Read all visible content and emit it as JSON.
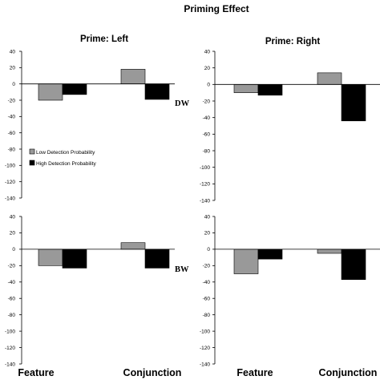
{
  "figure": {
    "title": "Priming Effect",
    "legend": [
      {
        "label": "Low Detection Probability",
        "color": "#999999"
      },
      {
        "label": "High Detection Probability",
        "color": "#000000"
      }
    ],
    "row_labels": [
      "DW",
      "BW"
    ]
  },
  "chart_data": [
    {
      "type": "bar",
      "title": "Prime: Left",
      "row_label": "DW",
      "categories": [
        "Feature",
        "Conjunction"
      ],
      "series": [
        {
          "name": "Low Detection Probability",
          "values": [
            -20,
            18
          ]
        },
        {
          "name": "High Detection Probability",
          "values": [
            -13,
            -19
          ]
        }
      ],
      "ylim": [
        -140,
        40
      ],
      "yticks": [
        40,
        20,
        0,
        -20,
        -40,
        -60,
        -80,
        -100,
        -120,
        -140
      ]
    },
    {
      "type": "bar",
      "title": "Prime: Right",
      "row_label": "DW",
      "categories": [
        "Feature",
        "Conjunction"
      ],
      "series": [
        {
          "name": "Low Detection Probability",
          "values": [
            -10,
            14
          ]
        },
        {
          "name": "High Detection Probability",
          "values": [
            -13,
            -44
          ]
        }
      ],
      "ylim": [
        -140,
        40
      ],
      "yticks": [
        40,
        20,
        0,
        -20,
        -40,
        -60,
        -80,
        -100,
        -120,
        -140
      ]
    },
    {
      "type": "bar",
      "title": "",
      "row_label": "BW",
      "categories": [
        "Feature",
        "Conjunction"
      ],
      "series": [
        {
          "name": "Low Detection Probability",
          "values": [
            -20,
            8
          ]
        },
        {
          "name": "High Detection Probability",
          "values": [
            -23,
            -23
          ]
        }
      ],
      "ylim": [
        -140,
        40
      ],
      "yticks": [
        40,
        20,
        0,
        -20,
        -40,
        -60,
        -80,
        -100,
        -120,
        -140
      ]
    },
    {
      "type": "bar",
      "title": "",
      "row_label": "BW",
      "categories": [
        "Feature",
        "Conjunction"
      ],
      "series": [
        {
          "name": "Low Detection Probability",
          "values": [
            -30,
            -5
          ]
        },
        {
          "name": "High Detection Probability",
          "values": [
            -12,
            -37
          ]
        }
      ],
      "ylim": [
        -140,
        40
      ],
      "yticks": [
        40,
        20,
        0,
        -20,
        -40,
        -60,
        -80,
        -100,
        -120,
        -140
      ]
    }
  ]
}
